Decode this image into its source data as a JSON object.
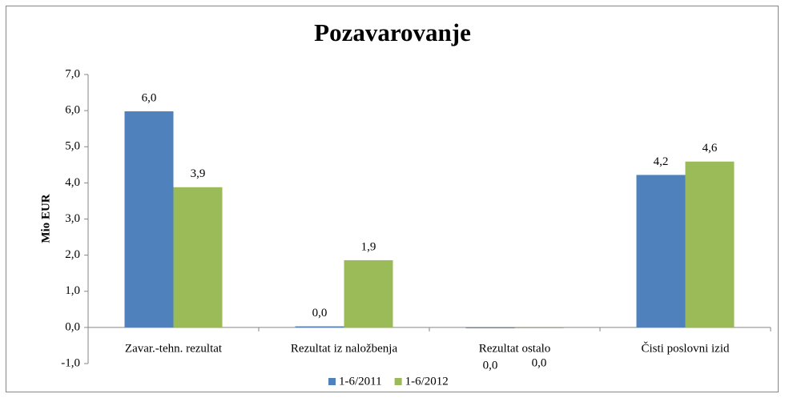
{
  "chart_data": {
    "type": "bar",
    "title": "Pozavarovanje",
    "y_label": "Mio EUR",
    "categories": [
      "Zavar.-tehn. rezultat",
      "Rezultat iz naložbenja",
      "Rezultat ostalo",
      "Čisti poslovni izid"
    ],
    "series": [
      {
        "name": "1-6/2011",
        "color": "#4f81bd",
        "values": [
          5.98,
          0.03,
          -0.02,
          4.22
        ],
        "value_labels": [
          "6,0",
          "0,0",
          "0,0",
          "4,2"
        ]
      },
      {
        "name": "1-6/2012",
        "color": "#9bbb59",
        "values": [
          3.88,
          1.86,
          -0.02,
          4.59
        ],
        "value_labels": [
          "3,9",
          "1,9",
          "0,0",
          "4,6"
        ]
      }
    ],
    "ylim": [
      -1,
      7
    ],
    "yticks": [
      {
        "value": -1,
        "label": "-1,0"
      },
      {
        "value": 0,
        "label": "0,0"
      },
      {
        "value": 1,
        "label": "1,0"
      },
      {
        "value": 2,
        "label": "2,0"
      },
      {
        "value": 3,
        "label": "3,0"
      },
      {
        "value": 4,
        "label": "4,0"
      },
      {
        "value": 5,
        "label": "5,0"
      },
      {
        "value": 6,
        "label": "6,0"
      },
      {
        "value": 7,
        "label": "7,0"
      }
    ],
    "legend": "bottom",
    "grid": false
  }
}
